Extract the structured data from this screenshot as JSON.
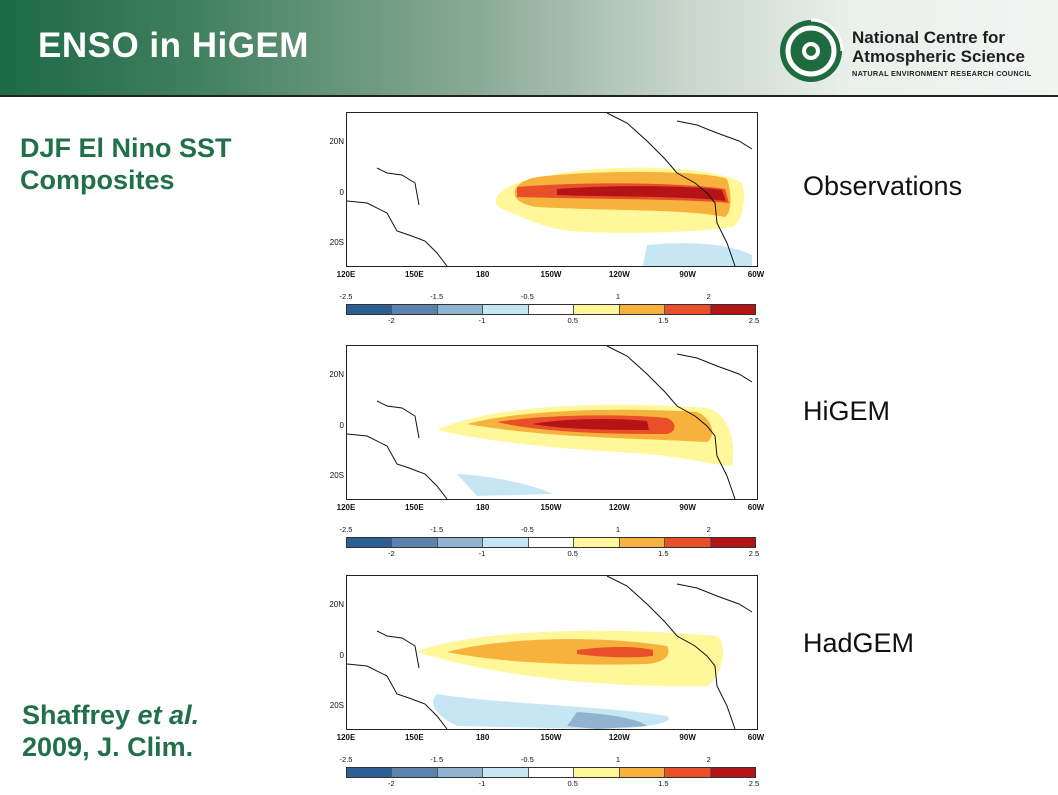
{
  "header": {
    "title": "ENSO in HiGEM",
    "logo": {
      "line1": "National Centre for",
      "line2": "Atmospheric Science",
      "line3": "NATURAL ENVIRONMENT RESEARCH COUNCIL"
    }
  },
  "subtitle_line1": "DJF El Nino SST",
  "subtitle_line2": "Composites",
  "citation": {
    "author": "Shaffrey ",
    "etal": "et al.",
    "line2": "2009, J. Clim."
  },
  "panels": [
    {
      "label": "Observations"
    },
    {
      "label": "HiGEM"
    },
    {
      "label": "HadGEM"
    }
  ],
  "map_axes": {
    "lat_labels": [
      "20N",
      "0",
      "20S"
    ],
    "lon_labels": [
      "120E",
      "150E",
      "180",
      "150W",
      "120W",
      "90W",
      "60W"
    ]
  },
  "colorbar": {
    "colors": [
      "#2c5f94",
      "#5b83ad",
      "#90b4cf",
      "#c7e6f4",
      "#ffffff",
      "#fff79a",
      "#f6b23c",
      "#e94f28",
      "#b51416"
    ],
    "upper_ticks": [
      "-2.5",
      "-1.5",
      "-0.5",
      "1",
      "2"
    ],
    "lower_ticks": [
      "-2",
      "-1",
      "0.5",
      "1.5",
      "2.5"
    ]
  }
}
